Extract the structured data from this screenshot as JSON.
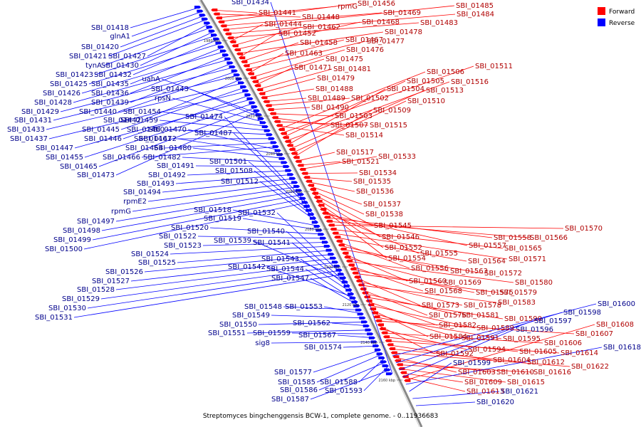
{
  "legend": {
    "forward": {
      "label": "Forward",
      "color": "#ff0000"
    },
    "reverse": {
      "label": "Reverse",
      "color": "#0000ff"
    }
  },
  "caption": "Streptomyces bingchenggensis BCW-1, complete genome. - 0..11936683",
  "ticks": [
    "1980 kbp",
    "2000 kbp",
    "2020 kbp",
    "2040 kbp",
    "2060 kbp",
    "2080 kbp",
    "2100 kbp",
    "2120 kbp",
    "2140 kbp",
    "2160 kbp"
  ],
  "reverse_left": [
    "SBI_01418",
    "glnA1",
    "SBI_01420",
    "SBI_01421",
    "SBI_01427",
    "tynA",
    "SBI_01430",
    "SBI_01423",
    "SBI_01432",
    "SBI_01425",
    "SBI_01435",
    "SBI_01426",
    "SBI_01436",
    "SBI_01428",
    "SBI_01439",
    "SBI_01429",
    "SBI_01440",
    "SBI_01431",
    "SBI_01442",
    "SBI_01433",
    "SBI_01445",
    "SBI_01437",
    "SBI_01446",
    "SBI_01447",
    "SBI_01455",
    "SBI_01465",
    "SBI_01473",
    "uahA",
    "SBI_01443",
    "rpsN",
    "SBI_01454",
    "SBI_01459",
    "SBI_01460",
    "SBI_01461",
    "SBI_01464",
    "SBI_01466",
    "SBI_01470",
    "SBI_01472",
    "SBI_01480",
    "SBI_01482",
    "SBI_01491",
    "SBI_01492",
    "SBI_01493",
    "SBI_01494",
    "rpmE2",
    "rpmG",
    "SBI_01497",
    "SBI_01498",
    "SBI_01499",
    "SBI_01500",
    "SBI_01474",
    "SBI_01487",
    "SBI_01501",
    "SBI_01508",
    "SBI_01512",
    "SBI_01518",
    "SBI_01519",
    "SBI_01520",
    "SBI_01522",
    "SBI_01523",
    "SBI_01524",
    "SBI_01525",
    "SBI_01526",
    "SBI_01527",
    "SBI_01528",
    "SBI_01529",
    "SBI_01530",
    "SBI_01531",
    "SBI_01532",
    "SBI_01539",
    "SBI_01540",
    "SBI_01541",
    "SBI_01543",
    "SBI_01542",
    "SBI_01544",
    "SBI_01547",
    "SBI_01548",
    "SBI_01553",
    "SBI_01549",
    "SBI_01550",
    "SBI_01562",
    "SBI_01551",
    "SBI_01559",
    "SBI_01567",
    "sig8",
    "SBI_01574",
    "SBI_01577",
    "SBI_01585",
    "SBI_01588",
    "SBI_01586",
    "SBI_01593",
    "SBI_01587",
    "SBI_01434"
  ],
  "forward_right": [
    "SBI_01441",
    "SBI_01448",
    "rpmG",
    "SBI_01456",
    "SBI_01469",
    "SBI_01485",
    "SBI_01484",
    "SBI_01483",
    "SBI_01444",
    "SBI_01462",
    "SBI_01468",
    "SBI_01478",
    "SBI_01452",
    "SBI_01458",
    "SBI_01467",
    "SBI_01477",
    "SBI_01463",
    "SBI_01476",
    "SBI_01475",
    "SBI_01471",
    "SBI_01481",
    "SBI_01479",
    "SBI_01488",
    "SBI_01489",
    "SBI_01502",
    "SBI_01490",
    "SBI_01503",
    "SBI_01507",
    "SBI_01515",
    "SBI_01514",
    "SBI_01506",
    "SBI_01511",
    "SBI_01505",
    "SBI_01516",
    "SBI_01504",
    "SBI_01513",
    "SBI_01510",
    "SBI_01509",
    "SBI_01517",
    "SBI_01521",
    "SBI_01533",
    "SBI_01534",
    "SBI_01535",
    "SBI_01536",
    "SBI_01537",
    "SBI_01538",
    "SBI_01545",
    "SBI_01546",
    "SBI_01552",
    "SBI_01554",
    "SBI_01555",
    "SBI_01557",
    "SBI_01558",
    "SBI_01566",
    "SBI_01570",
    "SBI_01565",
    "SBI_01571",
    "SBI_01564",
    "SBI_01556",
    "SBI_01563",
    "SBI_01572",
    "SBI_01560",
    "SBI_01569",
    "SBI_01580",
    "SBI_01568",
    "SBI_01575",
    "SBI_01579",
    "SBI_01573",
    "SBI_01578",
    "SBI_01583",
    "SBI_01576",
    "SBI_01581",
    "SBI_01590",
    "SBI_01582",
    "SBI_01589",
    "SBI_01584",
    "SBI_01591",
    "SBI_01595",
    "SBI_01607",
    "SBI_01592",
    "SBI_01594",
    "SBI_01606",
    "SBI_01605",
    "SBI_01614",
    "SBI_01604",
    "SBI_01612",
    "SBI_01622",
    "SBI_01603",
    "SBI_01610",
    "SBI_01616",
    "SBI_01615",
    "SBI_01609",
    "SBI_01613",
    "SBI_01608"
  ],
  "reverse_right": [
    "SBI_01600",
    "SBI_01598",
    "SBI_01597",
    "SBI_01596",
    "SBI_01618",
    "SBI_01599",
    "SBI_01621",
    "SBI_01620"
  ]
}
